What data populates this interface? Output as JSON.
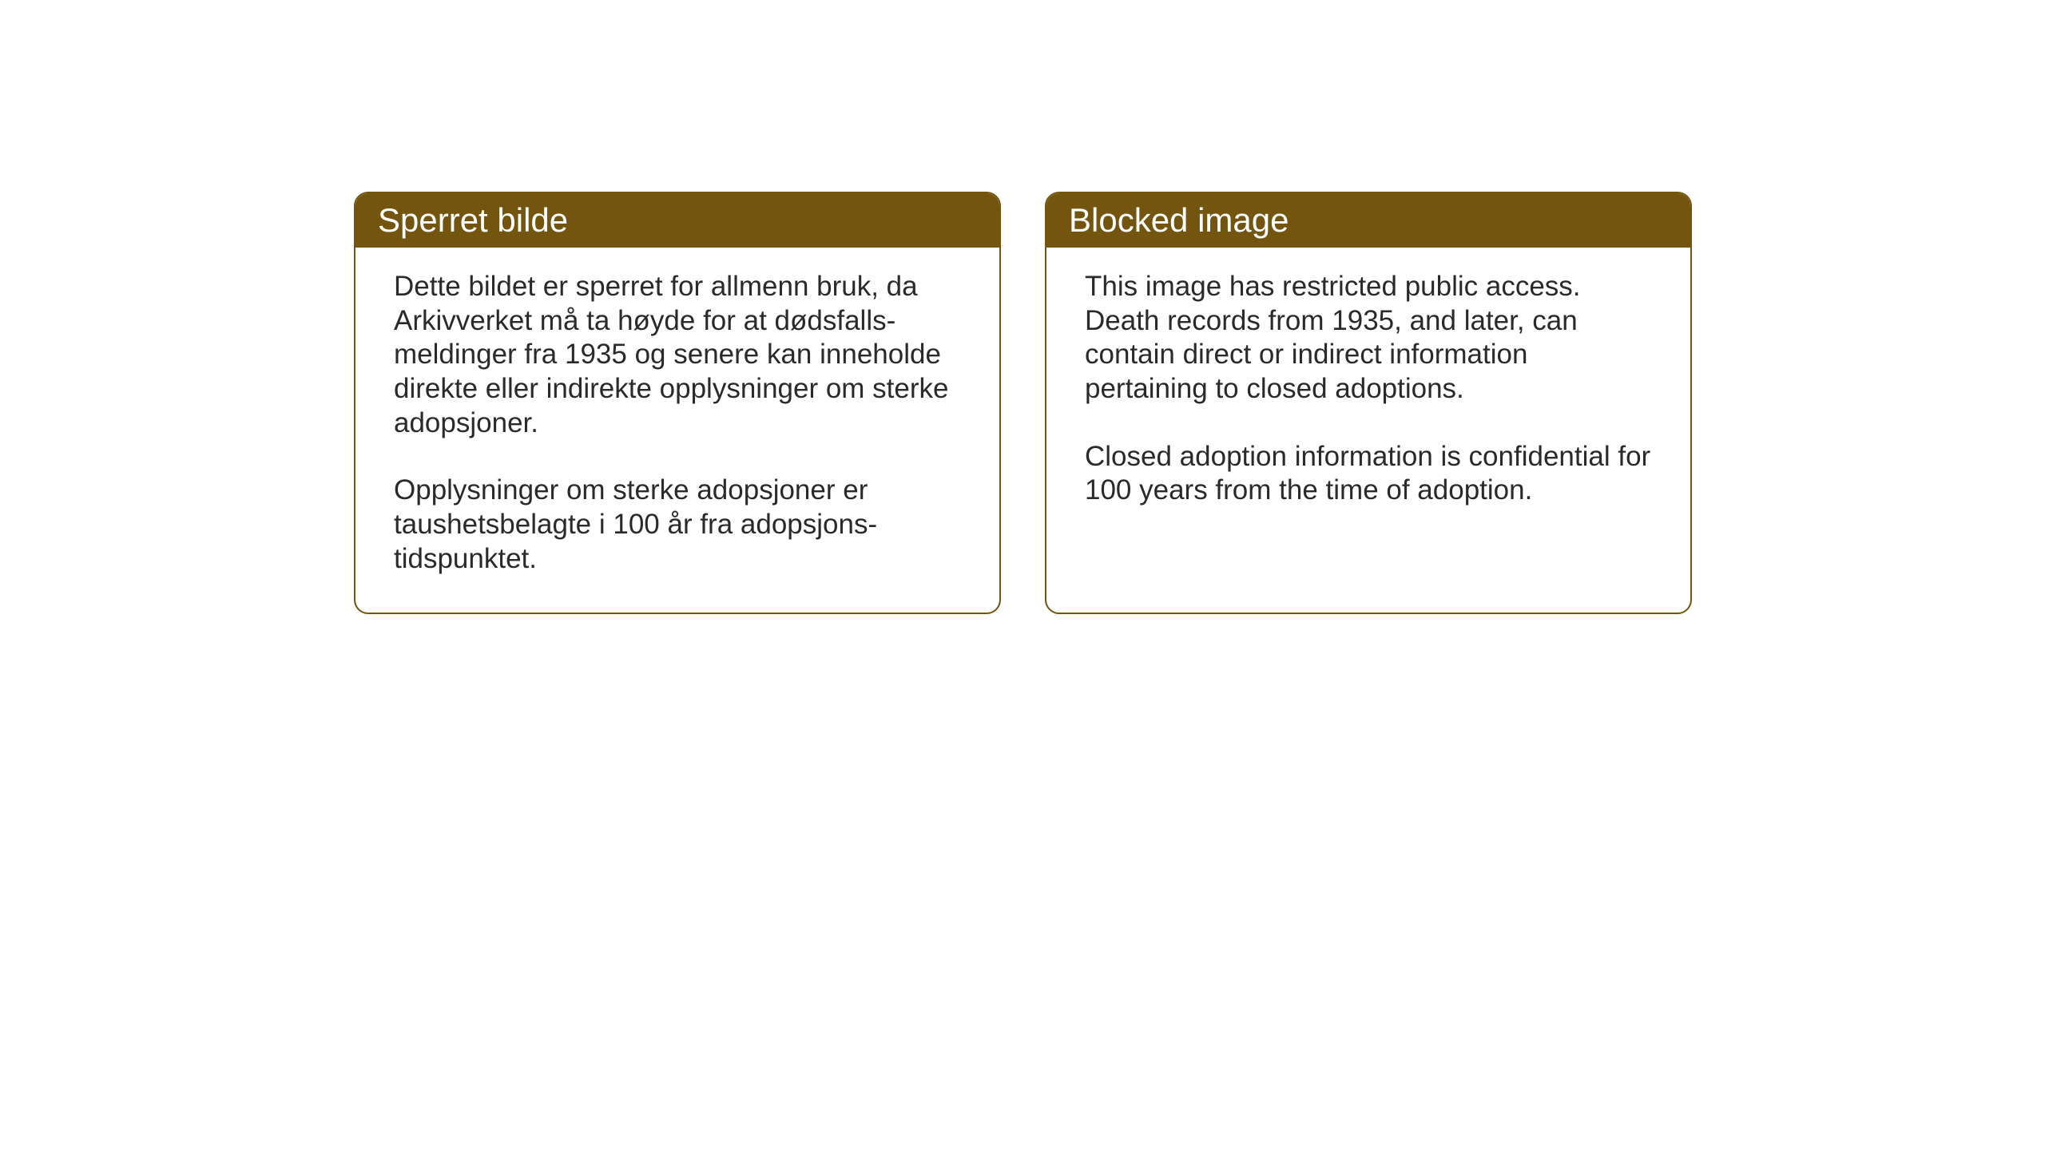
{
  "cards": {
    "norwegian": {
      "title": "Sperret bilde",
      "paragraph1": "Dette bildet er sperret for allmenn bruk, da Arkivverket må ta høyde for at dødsfalls-meldinger fra 1935 og senere kan inneholde direkte eller indirekte opplysninger om sterke adopsjoner.",
      "paragraph2": "Opplysninger om sterke adopsjoner er taushetsbelagte i 100 år fra adopsjons-tidspunktet."
    },
    "english": {
      "title": "Blocked image",
      "paragraph1": "This image has restricted public access. Death records from 1935, and later, can contain direct or indirect information pertaining to closed adoptions.",
      "paragraph2": "Closed adoption information is confidential for 100 years from the time of adoption."
    }
  },
  "styling": {
    "header_background_color": "#735510",
    "header_text_color": "#ffffff",
    "border_color": "#735510",
    "body_text_color": "#2a2a2a",
    "card_background_color": "#ffffff",
    "page_background_color": "#ffffff",
    "header_fontsize": 42,
    "body_fontsize": 35,
    "border_radius": 18,
    "border_width": 2
  }
}
